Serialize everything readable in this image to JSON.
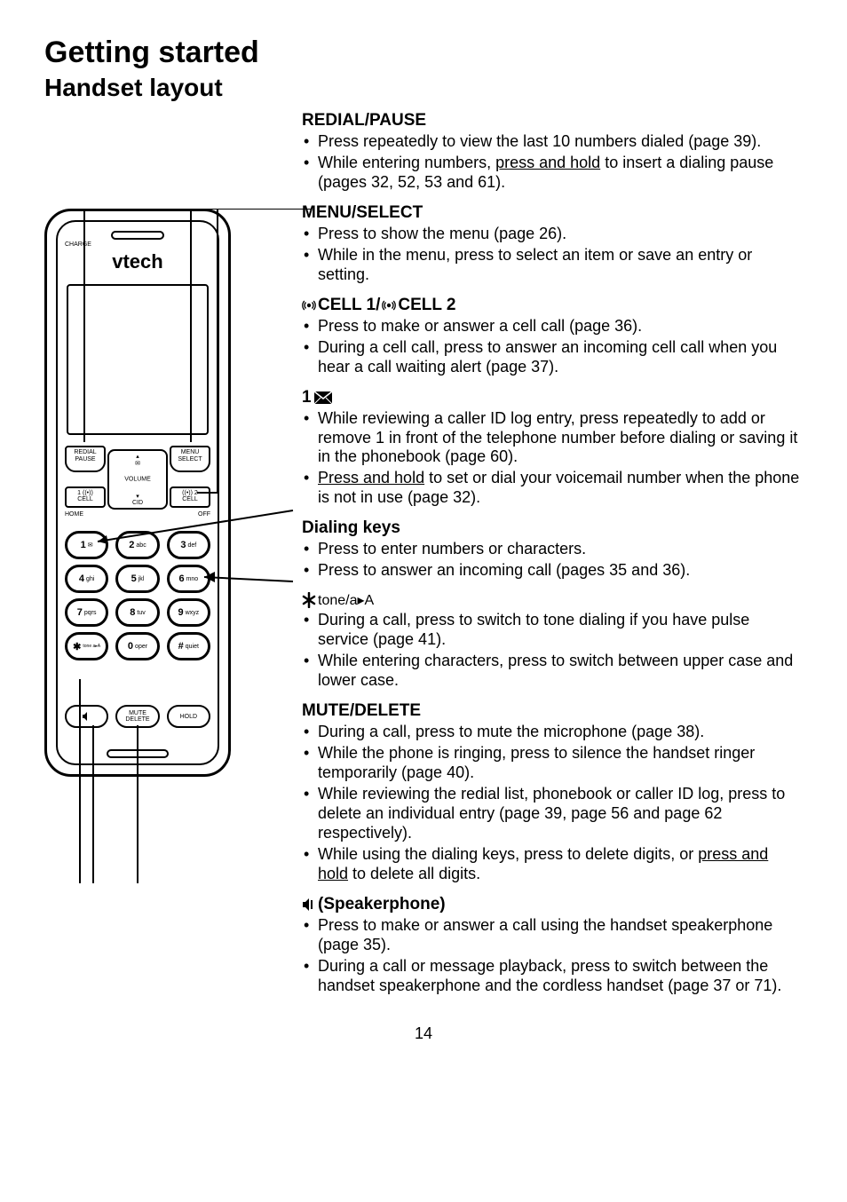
{
  "page": {
    "title": "Getting started",
    "subtitle": "Handset layout",
    "number": "14"
  },
  "handset": {
    "brand": "vtech",
    "charge_label": "CHARGE",
    "softkey_left_line1": "REDIAL",
    "softkey_left_line2": "PAUSE",
    "softkey_right_line1": "MENU",
    "softkey_right_line2": "SELECT",
    "nav_top": "⌃",
    "nav_center": "VOLUME",
    "nav_bottom_icon": "✉",
    "nav_cid": "CID",
    "call_left_top": "1",
    "call_left_bot": "CELL",
    "call_right_top": "2",
    "call_right_bot": "CELL",
    "label_home": "HOME",
    "label_flash": "FLASH",
    "label_off": "OFF",
    "label_cancel": "CANCEL",
    "keys": [
      {
        "main": "1",
        "sub": "✉"
      },
      {
        "main": "2",
        "sub": "abc"
      },
      {
        "main": "3",
        "sub": "def"
      },
      {
        "main": "4",
        "sub": "ghi"
      },
      {
        "main": "5",
        "sub": "jkl"
      },
      {
        "main": "6",
        "sub": "mno"
      },
      {
        "main": "7",
        "sub": "pqrs"
      },
      {
        "main": "8",
        "sub": "tuv"
      },
      {
        "main": "9",
        "sub": "wxyz"
      },
      {
        "main": "✱",
        "sub": "tone a▸A"
      },
      {
        "main": "0",
        "sub": "oper"
      },
      {
        "main": "#",
        "sub": "quiet"
      }
    ],
    "bottom_left": "◄",
    "bottom_mid_line1": "MUTE",
    "bottom_mid_line2": "DELETE",
    "bottom_right": "HOLD"
  },
  "sections": [
    {
      "title_plain": "REDIAL/PAUSE",
      "title_type": "plain",
      "bullets": [
        {
          "pre": "Press repeatedly to view the last 10 numbers dialed (page 39).",
          "u": "",
          "post": ""
        },
        {
          "pre": "While entering numbers, ",
          "u": "press and hold",
          "post": " to insert a dialing pause (pages 32, 52, 53 and 61)."
        }
      ]
    },
    {
      "title_plain": "MENU/SELECT",
      "title_type": "plain",
      "bullets": [
        {
          "pre": "Press to show the menu (page 26).",
          "u": "",
          "post": ""
        },
        {
          "pre": "While in the menu, press to select an item or save an entry or setting.",
          "u": "",
          "post": ""
        }
      ]
    },
    {
      "title_type": "cell",
      "cell1": "CELL 1/",
      "cell2": "CELL 2",
      "bullets": [
        {
          "pre": "Press to make or answer a cell call (page 36).",
          "u": "",
          "post": ""
        },
        {
          "pre": "During a cell call, press to answer an incoming cell call when you hear a call waiting alert (page 37).",
          "u": "",
          "post": ""
        }
      ]
    },
    {
      "title_type": "envelope",
      "title_prefix": "1",
      "bullets": [
        {
          "pre": "While reviewing a caller ID log entry, press repeatedly to add or remove 1 in front of the telephone number before dialing or saving it in the phonebook (page 60).",
          "u": "",
          "post": ""
        },
        {
          "pre": "",
          "u": "Press and hold",
          "post": " to set or dial your voicemail number when the phone is not in use (page 32)."
        }
      ]
    },
    {
      "title_plain": "Dialing keys",
      "title_type": "plain",
      "bullets": [
        {
          "pre": "Press to enter numbers or characters.",
          "u": "",
          "post": ""
        },
        {
          "pre": "Press to answer an incoming call (pages 35 and 36).",
          "u": "",
          "post": ""
        }
      ]
    },
    {
      "title_type": "tone",
      "tone_text": "tone/a▸A",
      "bullets": [
        {
          "pre": "During a call, press to switch to tone dialing if you have pulse service (page 41).",
          "u": "",
          "post": ""
        },
        {
          "pre": "While entering characters, press to switch between upper case and lower case.",
          "u": "",
          "post": ""
        }
      ]
    },
    {
      "title_plain": "MUTE/DELETE",
      "title_type": "plain",
      "bullets": [
        {
          "pre": "During a call, press to mute the microphone (page 38).",
          "u": "",
          "post": ""
        },
        {
          "pre": "While the phone is ringing, press to silence the handset ringer temporarily (page 40).",
          "u": "",
          "post": ""
        },
        {
          "pre": "While reviewing the redial list, phonebook or caller ID log, press to delete an individual entry (page 39, page 56 and page 62 respectively).",
          "u": "",
          "post": ""
        },
        {
          "pre": "While using the dialing keys, press to delete digits, or ",
          "u": "press and hold",
          "post": " to delete all digits."
        }
      ]
    },
    {
      "title_type": "speaker",
      "title_plain": " (Speakerphone)",
      "bullets": [
        {
          "pre": "Press to make or answer a call using the handset speakerphone (page 35).",
          "u": "",
          "post": ""
        },
        {
          "pre": "During a call or message playback, press to switch between the handset speakerphone and the cordless handset (page 37 or 71).",
          "u": "",
          "post": ""
        }
      ]
    }
  ],
  "colors": {
    "text": "#000000",
    "background": "#ffffff"
  }
}
